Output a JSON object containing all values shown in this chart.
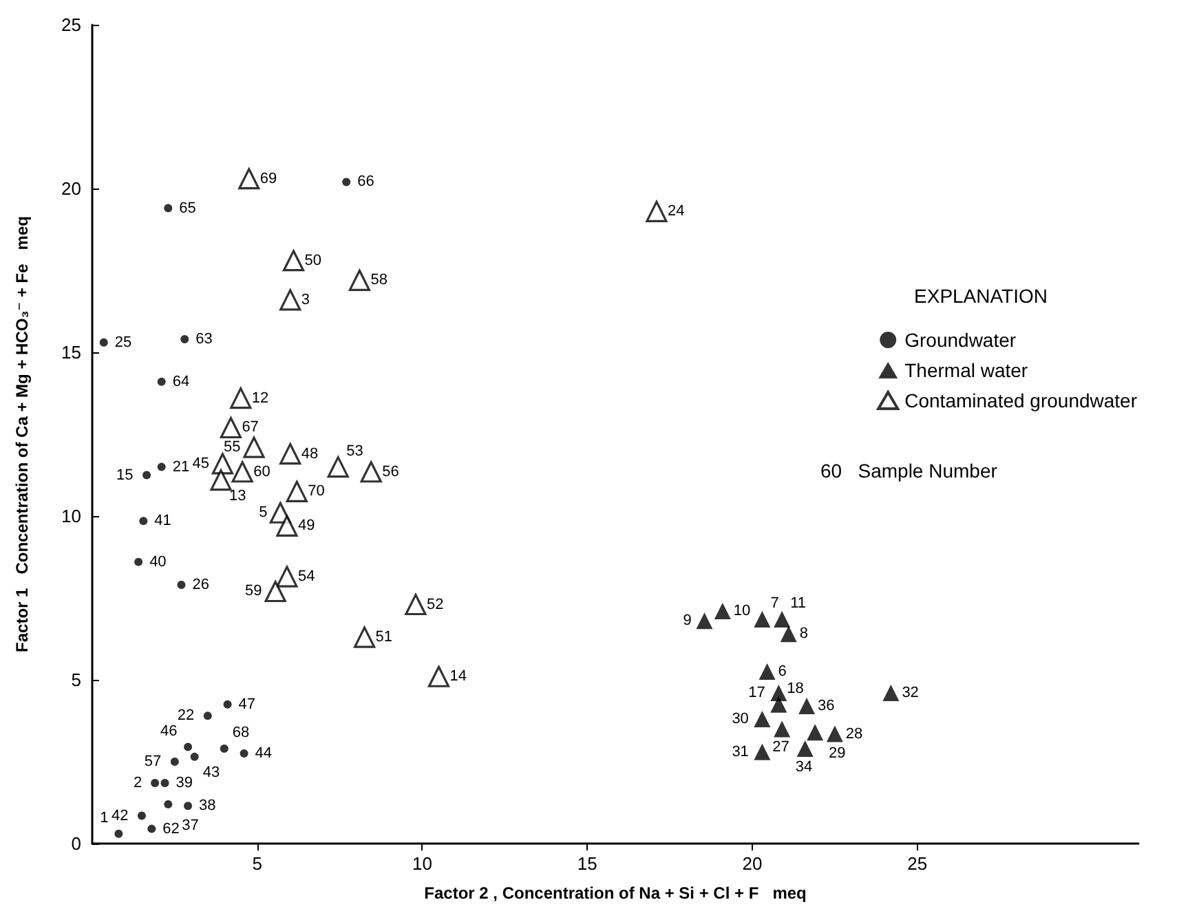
{
  "chart_data": {
    "type": "scatter",
    "xlabel": "Factor 2 , Concentration of Na + Si + Cl + F   meq",
    "ylabel": "Factor 1   Concentration of Ca + Mg + HCO₃⁻ + Fe   meq",
    "legend_title": "EXPLANATION",
    "legend": "right",
    "grid": false,
    "xlim": [
      0,
      31.7
    ],
    "xticks": [
      5,
      10,
      15,
      20,
      25
    ],
    "ylim": [
      0,
      25
    ],
    "yticks": [
      0,
      5,
      10,
      15,
      20,
      25
    ],
    "annotations": [
      "60   Sample Number",
      {
        "text": "66",
        "x": 7.7,
        "y": 20.2
      },
      {
        "text": "65",
        "x": 2.3,
        "y": 19.4
      },
      {
        "text": "25",
        "x": 0.35,
        "y": 15.3
      },
      {
        "text": "63",
        "x": 2.8,
        "y": 15.4
      },
      {
        "text": "64",
        "x": 2.1,
        "y": 14.1
      },
      {
        "text": "15",
        "x": 1.65,
        "y": 11.25
      },
      {
        "text": "21",
        "x": 2.1,
        "y": 11.5
      },
      {
        "text": "41",
        "x": 1.55,
        "y": 9.85
      },
      {
        "text": "40",
        "x": 1.4,
        "y": 8.6
      },
      {
        "text": "26",
        "x": 2.7,
        "y": 7.9
      },
      {
        "text": "47",
        "x": 4.1,
        "y": 4.25
      },
      {
        "text": "22",
        "x": 3.5,
        "y": 3.9
      },
      {
        "text": "46",
        "x": 2.9,
        "y": 2.95
      },
      {
        "text": "68",
        "x": 4.0,
        "y": 2.9
      },
      {
        "text": "44",
        "x": 4.6,
        "y": 2.75
      },
      {
        "text": "57",
        "x": 2.5,
        "y": 2.5
      },
      {
        "text": "43",
        "x": 3.1,
        "y": 2.65
      },
      {
        "text": "2",
        "x": 1.9,
        "y": 1.85
      },
      {
        "text": "39",
        "x": 2.2,
        "y": 1.85
      },
      {
        "text": "42",
        "x": 1.5,
        "y": 0.85
      },
      {
        "text": "38",
        "x": 2.9,
        "y": 1.15
      },
      {
        "text": "37",
        "x": 2.3,
        "y": 1.2
      },
      {
        "text": "62",
        "x": 1.8,
        "y": 0.45
      },
      {
        "text": "1",
        "x": 0.8,
        "y": 0.3
      },
      {
        "text": "9",
        "x": 18.55,
        "y": 6.8
      },
      {
        "text": "10",
        "x": 19.1,
        "y": 7.1
      },
      {
        "text": "7",
        "x": 20.3,
        "y": 6.85
      },
      {
        "text": "11",
        "x": 20.9,
        "y": 6.85
      },
      {
        "text": "8",
        "x": 21.1,
        "y": 6.4
      },
      {
        "text": "6",
        "x": 20.45,
        "y": 5.25
      },
      {
        "text": "17",
        "x": 20.8,
        "y": 4.6
      },
      {
        "text": "18",
        "x": 20.8,
        "y": 4.25
      },
      {
        "text": "36",
        "x": 21.65,
        "y": 4.2
      },
      {
        "text": "32",
        "x": 24.2,
        "y": 4.6
      },
      {
        "text": "30",
        "x": 20.3,
        "y": 3.8
      },
      {
        "text": "27",
        "x": 20.9,
        "y": 3.5
      },
      {
        "text": "29",
        "x": 21.9,
        "y": 3.4
      },
      {
        "text": "28",
        "x": 22.5,
        "y": 3.35
      },
      {
        "text": "34",
        "x": 21.6,
        "y": 2.9
      },
      {
        "text": "31",
        "x": 20.3,
        "y": 2.8
      },
      {
        "text": "69",
        "x": 4.75,
        "y": 20.3
      },
      {
        "text": "50",
        "x": 6.1,
        "y": 17.8
      },
      {
        "text": "58",
        "x": 8.1,
        "y": 17.2
      },
      {
        "text": "3",
        "x": 6.0,
        "y": 16.6
      },
      {
        "text": "24",
        "x": 17.1,
        "y": 19.3
      },
      {
        "text": "12",
        "x": 4.5,
        "y": 13.6
      },
      {
        "text": "67",
        "x": 4.2,
        "y": 12.7
      },
      {
        "text": "55",
        "x": 4.9,
        "y": 12.1
      },
      {
        "text": "48",
        "x": 6.0,
        "y": 11.9
      },
      {
        "text": "53",
        "x": 7.45,
        "y": 11.5
      },
      {
        "text": "56",
        "x": 8.45,
        "y": 11.35
      },
      {
        "text": "45",
        "x": 3.95,
        "y": 11.6
      },
      {
        "text": "13",
        "x": 3.9,
        "y": 11.1
      },
      {
        "text": "60",
        "x": 4.55,
        "y": 11.35
      },
      {
        "text": "70",
        "x": 6.2,
        "y": 10.75
      },
      {
        "text": "5",
        "x": 5.7,
        "y": 10.1
      },
      {
        "text": "49",
        "x": 5.9,
        "y": 9.7
      },
      {
        "text": "54",
        "x": 5.9,
        "y": 8.15
      },
      {
        "text": "59",
        "x": 5.55,
        "y": 7.7
      },
      {
        "text": "52",
        "x": 9.8,
        "y": 7.3
      },
      {
        "text": "51",
        "x": 8.25,
        "y": 6.3
      },
      {
        "text": "14",
        "x": 10.5,
        "y": 5.1
      }
    ],
    "series": [
      {
        "name": "Groundwater",
        "color": "#000000",
        "marker": "circle",
        "x": [
          7.7,
          2.3,
          0.35,
          2.8,
          2.1,
          1.65,
          2.1,
          1.55,
          1.4,
          2.7,
          4.1,
          3.5,
          2.9,
          4.0,
          4.6,
          2.5,
          3.1,
          1.9,
          2.2,
          1.5,
          2.9,
          2.3,
          1.8,
          0.8
        ],
        "values": [
          20.2,
          19.4,
          15.3,
          15.4,
          14.1,
          11.25,
          11.5,
          9.85,
          8.6,
          7.9,
          4.25,
          3.9,
          2.95,
          2.9,
          2.75,
          2.5,
          2.65,
          1.85,
          1.85,
          0.85,
          1.15,
          1.2,
          0.45,
          0.3
        ]
      },
      {
        "name": "Thermal water",
        "color": "#000000",
        "marker": "triangle",
        "x": [
          18.55,
          19.1,
          20.3,
          20.9,
          21.1,
          20.45,
          20.8,
          20.8,
          21.65,
          24.2,
          20.3,
          20.9,
          21.9,
          22.5,
          21.6,
          20.3
        ],
        "values": [
          6.8,
          7.1,
          6.85,
          6.85,
          6.4,
          5.25,
          4.6,
          4.25,
          4.2,
          4.6,
          3.8,
          3.5,
          3.4,
          3.35,
          2.9,
          2.8
        ]
      },
      {
        "name": "Contaminated groundwater",
        "color": "#000000",
        "marker": "triangle",
        "x": [
          4.75,
          6.1,
          8.1,
          6.0,
          17.1,
          4.5,
          4.2,
          4.9,
          6.0,
          7.45,
          8.45,
          3.95,
          3.9,
          4.55,
          6.2,
          5.7,
          5.9,
          5.9,
          5.55,
          9.8,
          8.25,
          10.5
        ],
        "values": [
          20.3,
          17.8,
          17.2,
          16.6,
          19.3,
          13.6,
          12.7,
          12.1,
          11.9,
          11.5,
          11.35,
          11.6,
          11.1,
          11.35,
          10.75,
          10.1,
          9.7,
          8.15,
          7.7,
          7.3,
          6.3,
          5.1
        ]
      }
    ]
  }
}
